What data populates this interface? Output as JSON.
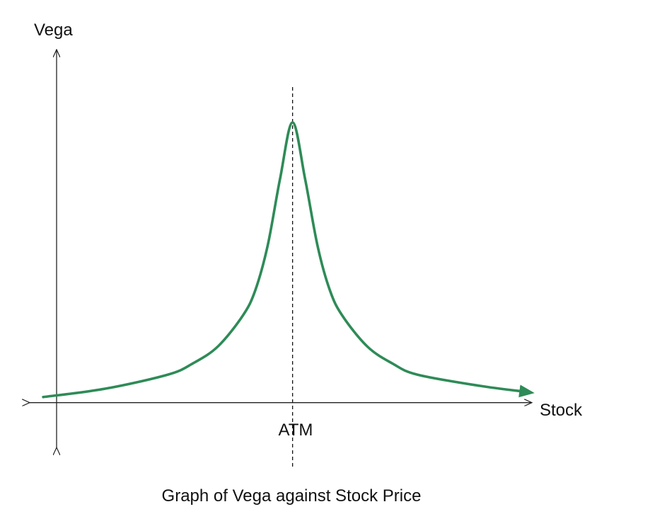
{
  "chart_data": {
    "type": "line",
    "title": "Graph of Vega against Stock Price",
    "xlabel": "Stock",
    "ylabel": "Vega",
    "annotations": [
      {
        "label": "ATM",
        "x": 0,
        "style": "dashed-vertical-line"
      }
    ],
    "series": [
      {
        "color": "#2e8b57",
        "x": [
          -10,
          -7.5,
          -5,
          -4,
          -3,
          -2,
          -1.5,
          -1,
          -0.5,
          0,
          0.5,
          1,
          1.5,
          2,
          3,
          4,
          5,
          7.5,
          9.2
        ],
        "values": [
          0.02,
          0.05,
          0.1,
          0.14,
          0.2,
          0.31,
          0.4,
          0.56,
          0.8,
          1.0,
          0.8,
          0.56,
          0.4,
          0.31,
          0.2,
          0.14,
          0.1,
          0.06,
          0.04
        ]
      }
    ],
    "xlim": [
      -10.6,
      9.6
    ],
    "ylim": [
      -0.16,
      1.26
    ],
    "grid": false,
    "legend": "none"
  }
}
